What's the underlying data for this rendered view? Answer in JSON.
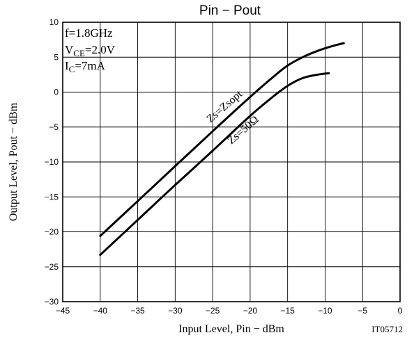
{
  "chart_data": {
    "type": "line",
    "title": "Pin − Pout",
    "xlabel": "Input Level,  Pin  −  dBm",
    "ylabel": "Output Level,  Pout  −  dBm",
    "xlim": [
      -45,
      0
    ],
    "ylim": [
      -30,
      10
    ],
    "x_ticks": [
      -45,
      -40,
      -35,
      -30,
      -25,
      -20,
      -15,
      -10,
      -5,
      0
    ],
    "y_ticks": [
      -30,
      -25,
      -20,
      -15,
      -10,
      -5,
      0,
      5,
      10
    ],
    "grid": true,
    "conditions": {
      "line1": "f=1.8GHz",
      "line2_main": "V",
      "line2_sub": "CE",
      "line2_rest": "=2.0V",
      "line3_main": "I",
      "line3_sub": "C",
      "line3_rest": "=7mA"
    },
    "series": [
      {
        "name": "Zs=Zsopt",
        "x": [
          -40,
          -35,
          -30,
          -25,
          -20,
          -17,
          -15,
          -13,
          -11,
          -9,
          -7.5
        ],
        "y": [
          -20.6,
          -15.6,
          -10.6,
          -5.6,
          -0.7,
          2.1,
          3.8,
          5.0,
          5.9,
          6.6,
          7.0
        ]
      },
      {
        "name": "Zs=50Ω",
        "x": [
          -40,
          -35,
          -30,
          -25,
          -20,
          -17,
          -15,
          -13,
          -11,
          -9.5
        ],
        "y": [
          -23.3,
          -18.3,
          -13.3,
          -8.4,
          -3.4,
          -0.7,
          0.9,
          2.0,
          2.5,
          2.7
        ]
      }
    ],
    "annotations": [
      {
        "text": "Zs=Zsopt"
      },
      {
        "text": "Zs=50Ω"
      }
    ],
    "figure_code": "IT05712"
  }
}
